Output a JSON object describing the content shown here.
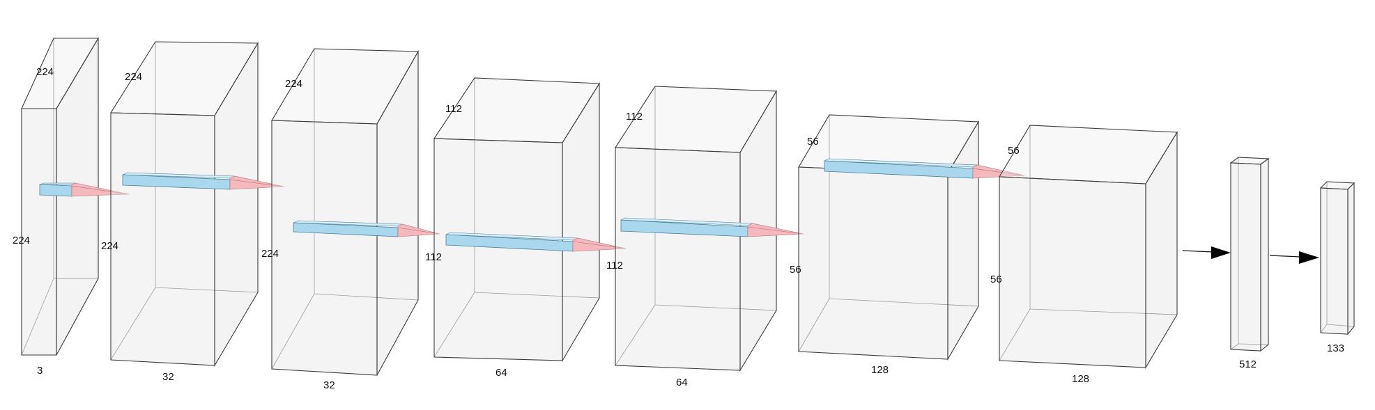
{
  "layers": [
    {
      "id": "input",
      "depth_label": "3",
      "height_label": "224",
      "width_label": "224"
    },
    {
      "id": "conv1",
      "depth_label": "32",
      "height_label": "224",
      "width_label": "224"
    },
    {
      "id": "conv2",
      "depth_label": "32",
      "height_label": "224",
      "width_label": "224"
    },
    {
      "id": "conv3",
      "depth_label": "64",
      "height_label": "112",
      "width_label": "112"
    },
    {
      "id": "conv4",
      "depth_label": "64",
      "height_label": "112",
      "width_label": "112"
    },
    {
      "id": "conv5",
      "depth_label": "128",
      "height_label": "56",
      "width_label": "56"
    },
    {
      "id": "conv6",
      "depth_label": "128",
      "height_label": "56",
      "width_label": "56"
    },
    {
      "id": "dense1",
      "depth_label": "512"
    },
    {
      "id": "output",
      "depth_label": "133"
    }
  ],
  "colors": {
    "kernel_body": "#a9d8ee",
    "kernel_tip": "#f4b8bd",
    "box_edge": "#3a3a3a",
    "arrow": "#000000"
  }
}
